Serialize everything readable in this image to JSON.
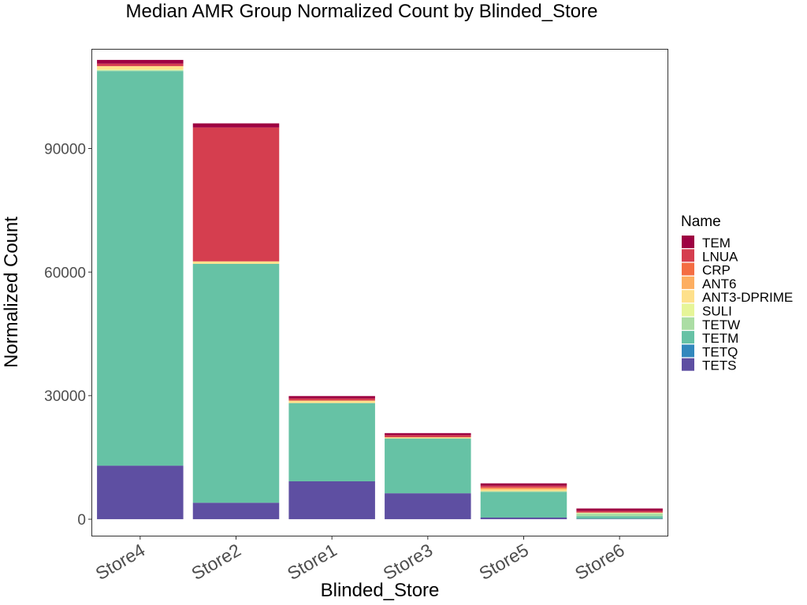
{
  "chart_data": {
    "type": "bar",
    "stacked": true,
    "title": "Median AMR Group Normalized Count by Blinded_Store",
    "xlabel": "Blinded_Store",
    "ylabel": "Normalized Count",
    "ylim": [
      -4000,
      114000
    ],
    "yticks": [
      0,
      30000,
      60000,
      90000
    ],
    "grid": false,
    "legend_position": "right",
    "legend_title": "Name",
    "categories": [
      "Store4",
      "Store2",
      "Store1",
      "Store3",
      "Store5",
      "Store6"
    ],
    "series": [
      {
        "name": "TETS",
        "color": "#5E4FA2",
        "values": [
          13000,
          4000,
          9200,
          6300,
          400,
          100
        ]
      },
      {
        "name": "TETQ",
        "color": "#3288BD",
        "values": [
          0,
          0,
          0,
          0,
          0,
          0
        ]
      },
      {
        "name": "TETM",
        "color": "#66C2A5",
        "values": [
          95800,
          58000,
          19000,
          13300,
          6200,
          650
        ]
      },
      {
        "name": "TETW",
        "color": "#ABDDA4",
        "values": [
          200,
          0,
          0,
          0,
          200,
          650
        ]
      },
      {
        "name": "SULI",
        "color": "#E6F598",
        "values": [
          200,
          0,
          0,
          0,
          0,
          200
        ]
      },
      {
        "name": "ANT3-DPRIME",
        "color": "#FEE08B",
        "values": [
          800,
          600,
          600,
          300,
          400,
          0
        ]
      },
      {
        "name": "ANT6",
        "color": "#FDAE61",
        "values": [
          0,
          0,
          0,
          0,
          300,
          0
        ]
      },
      {
        "name": "CRP",
        "color": "#F46D43",
        "values": [
          0,
          0,
          0,
          0,
          200,
          0
        ]
      },
      {
        "name": "LNUA",
        "color": "#D53E4F",
        "values": [
          600,
          32500,
          500,
          500,
          400,
          400
        ]
      },
      {
        "name": "TEM",
        "color": "#9E0142",
        "values": [
          900,
          1000,
          600,
          500,
          600,
          600
        ]
      }
    ]
  }
}
